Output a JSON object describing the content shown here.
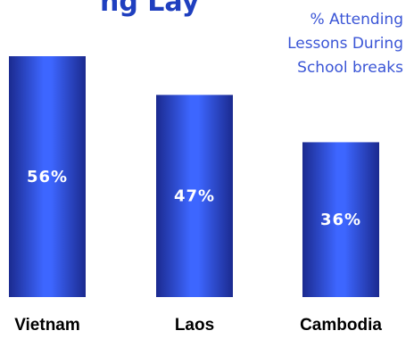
{
  "chart_data": {
    "type": "bar",
    "title": "",
    "title_partial_visible": "ng Lay",
    "categories": [
      "Vietnam",
      "Laos",
      "Cambodia"
    ],
    "values": [
      56,
      47,
      36
    ],
    "value_labels": [
      "56%",
      "47%",
      "36%"
    ],
    "legend_lines": [
      "% Attending",
      "Lessons During",
      "School breaks"
    ],
    "legend_position": "top-right",
    "ylim": [
      0,
      56
    ],
    "grid": false,
    "colors": {
      "bar_edge": "#1b2a8f",
      "bar_mid": "#2f5af0",
      "bar_center": "#4b72ff",
      "title": "#1f3fbf",
      "legend_text": "#3a55d6"
    }
  }
}
